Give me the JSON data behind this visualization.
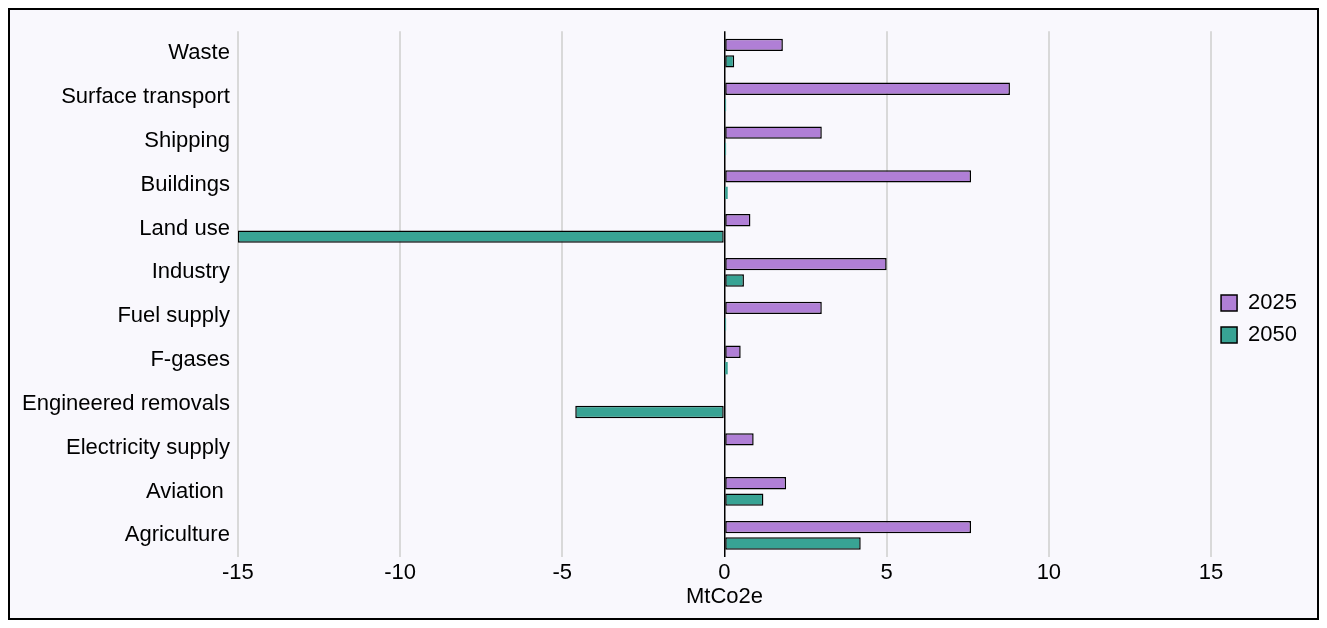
{
  "chart_data": {
    "type": "bar",
    "orientation": "horizontal",
    "xlabel": "MtCo2e",
    "categories": [
      "Waste",
      "Surface transport",
      "Shipping",
      "Buildings",
      "Land use",
      "Industry",
      "Fuel supply",
      "F-gases",
      "Engineered removals",
      "Electricity supply",
      "Aviation ",
      "Agriculture"
    ],
    "series": [
      {
        "name": "2025",
        "color": "#b07fd6",
        "values": [
          1.8,
          8.8,
          3.0,
          7.6,
          0.8,
          5.0,
          3.0,
          0.5,
          null,
          0.9,
          1.9,
          7.6
        ]
      },
      {
        "name": "2050",
        "color": "#38a394",
        "values": [
          0.3,
          0.05,
          0.05,
          0.1,
          -15,
          0.6,
          0.05,
          0.1,
          -4.6,
          null,
          1.2,
          4.2
        ]
      }
    ],
    "xlim": [
      -15,
      15
    ],
    "xticks": [
      -15,
      -10,
      -5,
      0,
      5,
      10,
      15
    ],
    "grid": "x",
    "legend": "right"
  }
}
